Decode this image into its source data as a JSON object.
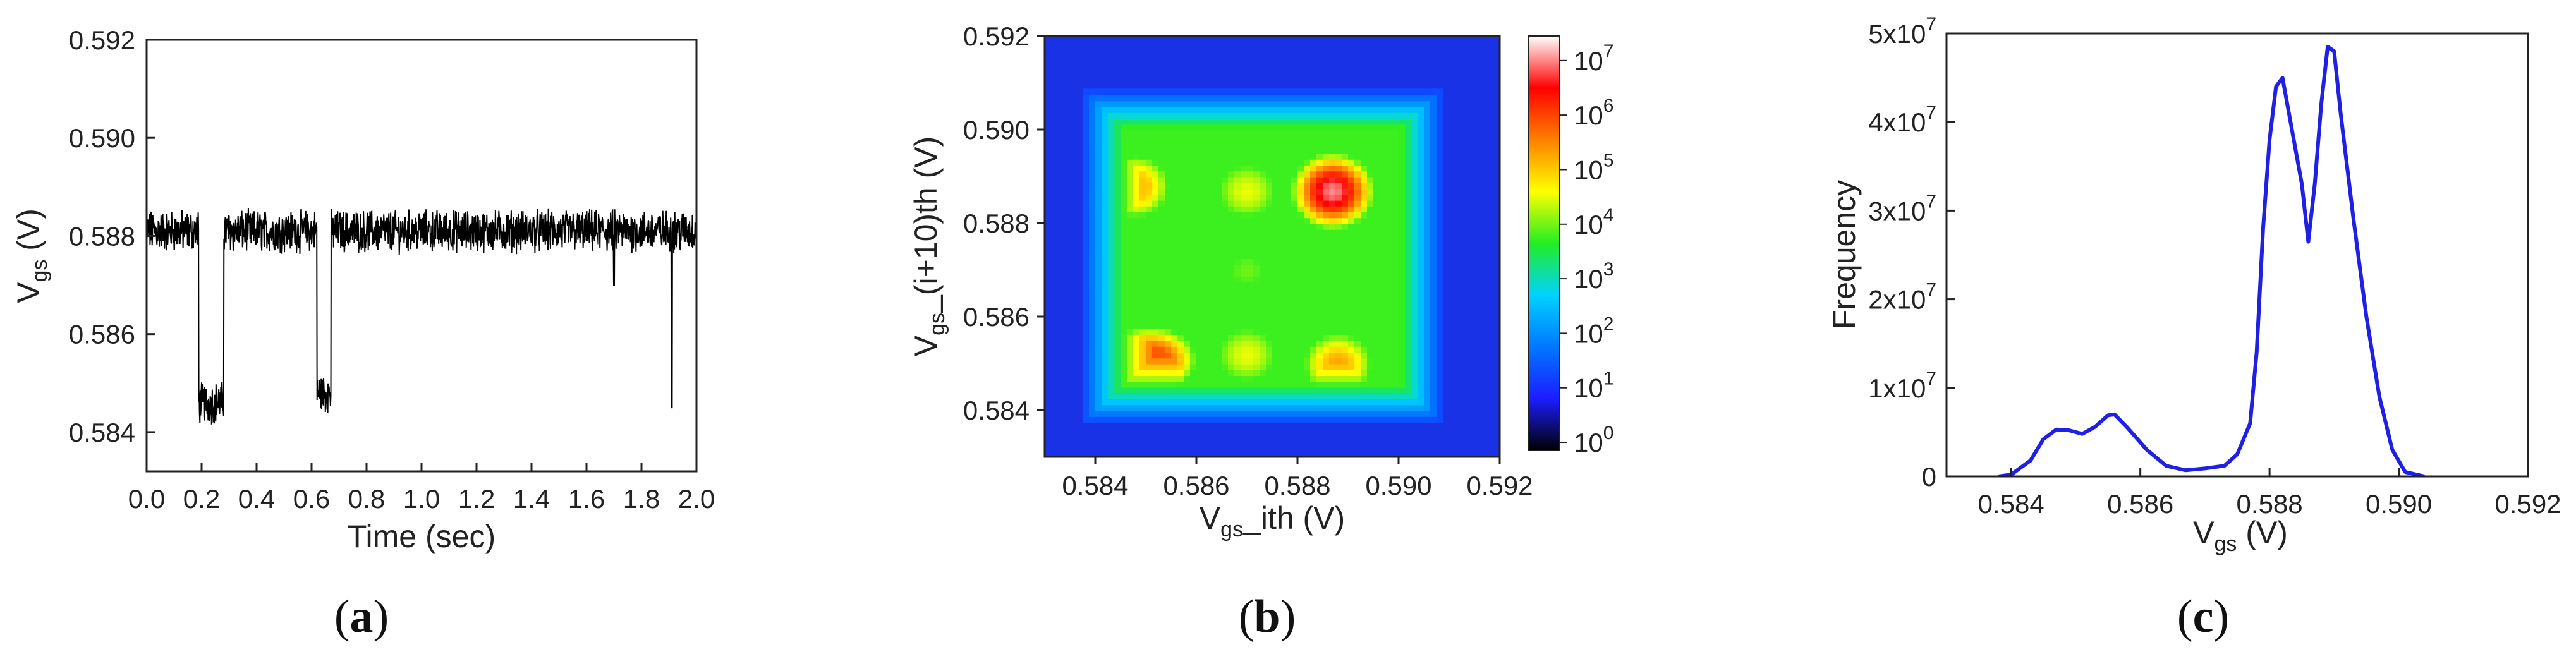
{
  "chart_data": [
    {
      "panel": "(a)",
      "type": "line",
      "xlabel": "Time (sec)",
      "ylabel": {
        "base": "V",
        "sub": "gs",
        "rest": " (V)"
      },
      "xlim": [
        0.0,
        2.0
      ],
      "ylim": [
        0.5832,
        0.592
      ],
      "xticks": [
        "0.0",
        "0.2",
        "0.4",
        "0.6",
        "0.8",
        "1.0",
        "1.2",
        "1.4",
        "1.6",
        "1.8",
        "2.0"
      ],
      "yticks": [
        "0.584",
        "0.586",
        "0.588",
        "0.590",
        "0.592"
      ],
      "signal": {
        "baseline": 0.5881,
        "noise": 0.00035,
        "dips": [
          {
            "x0": 0.19,
            "x1": 0.28,
            "level": 0.5846
          },
          {
            "x0": 0.62,
            "x1": 0.67,
            "level": 0.5848
          }
        ],
        "spikes": [
          {
            "x": 1.7,
            "level": 0.587
          },
          {
            "x": 1.91,
            "level": 0.5845
          }
        ]
      },
      "color": "#000000"
    },
    {
      "panel": "(b)",
      "type": "heatmap",
      "xlabel": {
        "base": "V",
        "sub": "gs",
        "rest": "_ith (V)"
      },
      "ylabel": {
        "base": "V",
        "sub": "gs",
        "rest": "_(i+10)th (V)"
      },
      "xlim": [
        0.583,
        0.592
      ],
      "ylim": [
        0.583,
        0.592
      ],
      "xticks": [
        "0.584",
        "0.586",
        "0.588",
        "0.590",
        "0.592"
      ],
      "yticks": [
        "0.584",
        "0.586",
        "0.588",
        "0.590",
        "0.592"
      ],
      "colorbar": {
        "min_exp": 0,
        "max_exp": 7,
        "tick_labels": [
          {
            "base": "10",
            "exp": "0"
          },
          {
            "base": "10",
            "exp": "1"
          },
          {
            "base": "10",
            "exp": "2"
          },
          {
            "base": "10",
            "exp": "3"
          },
          {
            "base": "10",
            "exp": "4"
          },
          {
            "base": "10",
            "exp": "5"
          },
          {
            "base": "10",
            "exp": "6"
          },
          {
            "base": "10",
            "exp": "7"
          }
        ],
        "colors": [
          "#000000",
          "#1c1cff",
          "#0078ff",
          "#00d2ff",
          "#22ee22",
          "#ffff00",
          "#ff8000",
          "#ff0000",
          "#ffffff"
        ]
      },
      "background_color": "#1a32e6",
      "blobs": [
        {
          "x": 0.5887,
          "y": 0.5887,
          "value": 6.6,
          "sx": 0.00075,
          "sy": 0.00075
        },
        {
          "x": 0.5851,
          "y": 0.5851,
          "value": 5.9,
          "sx": 0.0009,
          "sy": 0.0007
        },
        {
          "x": 0.587,
          "y": 0.587,
          "value": 3.8,
          "sx": 0.0009,
          "sy": 0.0009
        },
        {
          "x": 0.5848,
          "y": 0.5888,
          "value": 5.0,
          "sx": 0.0008,
          "sy": 0.0008
        },
        {
          "x": 0.5888,
          "y": 0.585,
          "value": 5.0,
          "sx": 0.0008,
          "sy": 0.0008
        },
        {
          "x": 0.587,
          "y": 0.5887,
          "value": 4.3,
          "sx": 0.0009,
          "sy": 0.0009
        },
        {
          "x": 0.587,
          "y": 0.5852,
          "value": 4.3,
          "sx": 0.0009,
          "sy": 0.0009
        }
      ]
    },
    {
      "panel": "(c)",
      "type": "line",
      "xlabel": {
        "base": "V",
        "sub": "gs",
        "rest": " (V)"
      },
      "ylabel": "Frequency",
      "xlim": [
        0.583,
        0.592
      ],
      "ylim": [
        0,
        50000000
      ],
      "xticks": [
        "0.584",
        "0.586",
        "0.588",
        "0.590",
        "0.592"
      ],
      "yticks": [
        {
          "value": 0,
          "label": "0",
          "exp": ""
        },
        {
          "value": 10000000,
          "label": "1x10",
          "exp": "7"
        },
        {
          "value": 20000000,
          "label": "2x10",
          "exp": "7"
        },
        {
          "value": 30000000,
          "label": "3x10",
          "exp": "7"
        },
        {
          "value": 40000000,
          "label": "4x10",
          "exp": "7"
        },
        {
          "value": 50000000,
          "label": "5x10",
          "exp": "7"
        }
      ],
      "color": "#1f1fe6",
      "x": [
        0.5838,
        0.584,
        0.5843,
        0.5845,
        0.5847,
        0.5849,
        0.5851,
        0.5853,
        0.5855,
        0.5856,
        0.5858,
        0.5861,
        0.5864,
        0.5867,
        0.587,
        0.5873,
        0.5875,
        0.5877,
        0.5878,
        0.5879,
        0.588,
        0.5881,
        0.5882,
        0.5883,
        0.5885,
        0.5886,
        0.5887,
        0.5888,
        0.5889,
        0.589,
        0.5891,
        0.5893,
        0.5895,
        0.5897,
        0.5899,
        0.5901,
        0.5904
      ],
      "y": [
        0,
        200000,
        1800000,
        4200000,
        5300000,
        5200000,
        4800000,
        5600000,
        6900000,
        7000000,
        5500000,
        3000000,
        1200000,
        700000,
        900000,
        1200000,
        2500000,
        6000000,
        14000000,
        28000000,
        38000000,
        44000000,
        45000000,
        41000000,
        33000000,
        26500000,
        33000000,
        42000000,
        48500000,
        48000000,
        41000000,
        29000000,
        18000000,
        9000000,
        3000000,
        500000,
        0
      ]
    }
  ],
  "panels": {
    "a": {
      "open": "(",
      "letter": "a",
      "close": ")"
    },
    "b": {
      "open": "(",
      "letter": "b",
      "close": ")"
    },
    "c": {
      "open": "(",
      "letter": "c",
      "close": ")"
    }
  }
}
